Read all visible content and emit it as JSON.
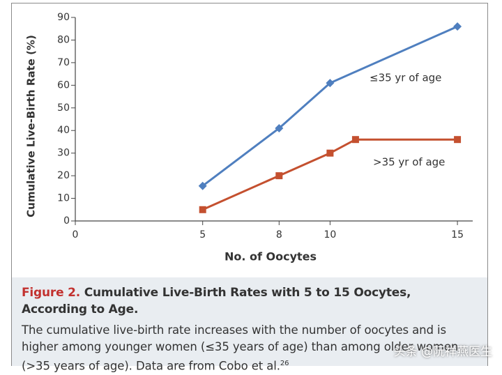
{
  "chart_data": {
    "type": "line",
    "xlabel": "No. of Oocytes",
    "ylabel": "Cumulative Live-Birth Rate (%)",
    "xlim": [
      0,
      15.6
    ],
    "xticks": [
      0,
      5,
      8,
      10,
      15
    ],
    "ylim": [
      0,
      90
    ],
    "yticks": [
      0,
      10,
      20,
      30,
      40,
      50,
      60,
      70,
      80,
      90
    ],
    "series": [
      {
        "name": "≤35 yr of age",
        "color": "#4f7fbf",
        "marker": "diamond",
        "x": [
          5,
          8,
          10,
          15
        ],
        "values": [
          15.5,
          41,
          61,
          86
        ]
      },
      {
        "name": ">35 yr of age",
        "color": "#c4502f",
        "marker": "square",
        "x": [
          5,
          8,
          10,
          11,
          15
        ],
        "values": [
          5,
          20,
          30,
          36,
          36
        ]
      }
    ]
  },
  "caption": {
    "label": "Figure 2.",
    "title": "Cumulative Live-Birth Rates with 5 to 15 Oocytes, According to Age.",
    "body": "The cumulative live-birth rate increases with the number of oocytes and is higher among younger women (≤35 years of age) than among older women (>35 years of age). Data are from Cobo et al.",
    "superscript": "26"
  },
  "watermark": "头条 @阮祥燕医生"
}
